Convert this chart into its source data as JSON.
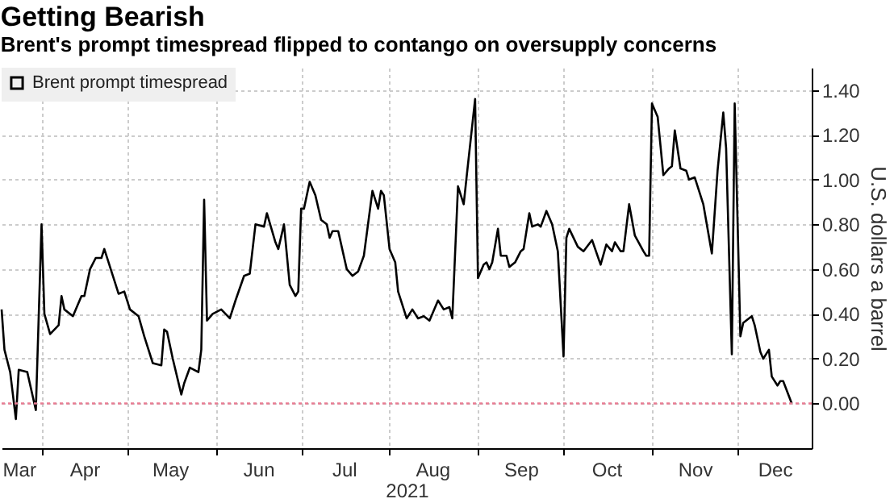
{
  "chart_data": {
    "type": "line",
    "title": "Getting Bearish",
    "subtitle": "Brent's prompt timespread flipped to contango on oversupply concerns",
    "xlabel": "2021",
    "ylabel": "U.S. dollars a barrel",
    "xlim": [
      "2021-03-18",
      "2021-12-27"
    ],
    "xticks": [
      {
        "value": "2021-03-24",
        "label": "Mar"
      },
      {
        "value": "2021-04-01",
        "label": null
      },
      {
        "value": "2021-04-16",
        "label": "Apr"
      },
      {
        "value": "2021-05-01",
        "label": null
      },
      {
        "value": "2021-05-16",
        "label": "May"
      },
      {
        "value": "2021-06-01",
        "label": null
      },
      {
        "value": "2021-06-16",
        "label": "Jun"
      },
      {
        "value": "2021-07-01",
        "label": null
      },
      {
        "value": "2021-07-16",
        "label": "Jul"
      },
      {
        "value": "2021-08-01",
        "label": null
      },
      {
        "value": "2021-08-16",
        "label": "Aug"
      },
      {
        "value": "2021-09-01",
        "label": null
      },
      {
        "value": "2021-09-16",
        "label": "Sep"
      },
      {
        "value": "2021-10-01",
        "label": null
      },
      {
        "value": "2021-10-16",
        "label": "Oct"
      },
      {
        "value": "2021-11-01",
        "label": null
      },
      {
        "value": "2021-11-16",
        "label": "Nov"
      },
      {
        "value": "2021-12-01",
        "label": null
      },
      {
        "value": "2021-12-14",
        "label": "Dec"
      }
    ],
    "ylim": [
      -0.2,
      1.5
    ],
    "yticks": [
      {
        "value": 0,
        "label": "0.00"
      },
      {
        "value": 0.2,
        "label": "0.20"
      },
      {
        "value": 0.4,
        "label": "0.40"
      },
      {
        "value": 0.6,
        "label": "0.60"
      },
      {
        "value": 0.8,
        "label": "0.80"
      },
      {
        "value": 1,
        "label": "1.00"
      },
      {
        "value": 1.2,
        "label": "1.20"
      },
      {
        "value": 1.4,
        "label": "1.40"
      }
    ],
    "grid": true,
    "legend": "top left",
    "ref_lines": [
      {
        "axis": "y",
        "value": 0,
        "color": "#e87c93",
        "line_style": "dotted"
      }
    ],
    "x": [
      "2021-03-18",
      "2021-03-19",
      "2021-03-21",
      "2021-03-23",
      "2021-03-24",
      "2021-03-27",
      "2021-03-30",
      "2021-04-01",
      "2021-04-02",
      "2021-04-04",
      "2021-04-07",
      "2021-04-08",
      "2021-04-09",
      "2021-04-12",
      "2021-04-15",
      "2021-04-16",
      "2021-04-18",
      "2021-04-20",
      "2021-04-22",
      "2021-04-23",
      "2021-04-26",
      "2021-04-28",
      "2021-04-30",
      "2021-05-02",
      "2021-05-05",
      "2021-05-07",
      "2021-05-10",
      "2021-05-13",
      "2021-05-14",
      "2021-05-15",
      "2021-05-17",
      "2021-05-20",
      "2021-05-21",
      "2021-05-23",
      "2021-05-26",
      "2021-05-27",
      "2021-05-28",
      "2021-05-29",
      "2021-05-31",
      "2021-06-03",
      "2021-06-06",
      "2021-06-08",
      "2021-06-11",
      "2021-06-13",
      "2021-06-15",
      "2021-06-18",
      "2021-06-19",
      "2021-06-22",
      "2021-06-23",
      "2021-06-25",
      "2021-06-27",
      "2021-06-29",
      "2021-06-30",
      "2021-07-01",
      "2021-07-02",
      "2021-07-04",
      "2021-07-06",
      "2021-07-08",
      "2021-07-10",
      "2021-07-11",
      "2021-07-12",
      "2021-07-14",
      "2021-07-17",
      "2021-07-19",
      "2021-07-21",
      "2021-07-23",
      "2021-07-26",
      "2021-07-28",
      "2021-07-29",
      "2021-07-30",
      "2021-08-01",
      "2021-08-03",
      "2021-08-04",
      "2021-08-07",
      "2021-08-09",
      "2021-08-11",
      "2021-08-13",
      "2021-08-15",
      "2021-08-18",
      "2021-08-20",
      "2021-08-22",
      "2021-08-23",
      "2021-08-25",
      "2021-08-27",
      "2021-08-28",
      "2021-08-31",
      "2021-09-01",
      "2021-09-03",
      "2021-09-04",
      "2021-09-05",
      "2021-09-06",
      "2021-09-08",
      "2021-09-09",
      "2021-09-11",
      "2021-09-12",
      "2021-09-14",
      "2021-09-16",
      "2021-09-17",
      "2021-09-19",
      "2021-09-20",
      "2021-09-22",
      "2021-09-23",
      "2021-09-25",
      "2021-09-27",
      "2021-09-29",
      "2021-10-01",
      "2021-10-02",
      "2021-10-03",
      "2021-10-06",
      "2021-10-08",
      "2021-10-11",
      "2021-10-14",
      "2021-10-16",
      "2021-10-18",
      "2021-10-19",
      "2021-10-21",
      "2021-10-22",
      "2021-10-24",
      "2021-10-26",
      "2021-10-29",
      "2021-10-30",
      "2021-10-31",
      "2021-11-01",
      "2021-11-03",
      "2021-11-05",
      "2021-11-07",
      "2021-11-08",
      "2021-11-09",
      "2021-11-11",
      "2021-11-13",
      "2021-11-14",
      "2021-11-16",
      "2021-11-19",
      "2021-11-22",
      "2021-11-24",
      "2021-11-26",
      "2021-11-27",
      "2021-11-29",
      "2021-11-30",
      "2021-12-02",
      "2021-12-03",
      "2021-12-06",
      "2021-12-07",
      "2021-12-09",
      "2021-12-10",
      "2021-12-12",
      "2021-12-13",
      "2021-12-15",
      "2021-12-16",
      "2021-12-17",
      "2021-12-20"
    ],
    "series": [
      {
        "name": "Brent prompt timespread",
        "color": "#000000",
        "values": [
          0.42,
          0.24,
          0.14,
          -0.07,
          0.15,
          0.14,
          -0.03,
          0.8,
          0.4,
          0.31,
          0.35,
          0.48,
          0.42,
          0.39,
          0.48,
          0.48,
          0.6,
          0.65,
          0.65,
          0.69,
          0.57,
          0.49,
          0.5,
          0.42,
          0.39,
          0.3,
          0.18,
          0.17,
          0.33,
          0.32,
          0.2,
          0.04,
          0.09,
          0.16,
          0.14,
          0.24,
          0.91,
          0.37,
          0.4,
          0.42,
          0.38,
          0.46,
          0.57,
          0.58,
          0.8,
          0.79,
          0.85,
          0.72,
          0.69,
          0.8,
          0.53,
          0.48,
          0.5,
          0.87,
          0.87,
          0.99,
          0.93,
          0.82,
          0.8,
          0.74,
          0.77,
          0.77,
          0.6,
          0.57,
          0.59,
          0.66,
          0.95,
          0.87,
          0.95,
          0.93,
          0.69,
          0.63,
          0.5,
          0.38,
          0.42,
          0.38,
          0.39,
          0.37,
          0.46,
          0.42,
          0.43,
          0.38,
          0.97,
          0.89,
          1.01,
          1.36,
          0.56,
          0.62,
          0.63,
          0.6,
          0.63,
          0.78,
          0.66,
          0.66,
          0.61,
          0.63,
          0.68,
          0.69,
          0.85,
          0.79,
          0.8,
          0.79,
          0.86,
          0.8,
          0.68,
          0.21,
          0.74,
          0.78,
          0.7,
          0.68,
          0.73,
          0.62,
          0.71,
          0.68,
          0.72,
          0.68,
          0.68,
          0.89,
          0.75,
          0.68,
          0.66,
          0.66,
          1.34,
          1.28,
          1.02,
          1.05,
          1.06,
          1.22,
          1.05,
          1.04,
          1.0,
          1.01,
          0.89,
          0.67,
          1.04,
          1.3,
          1.14,
          0.22,
          1.34,
          0.3,
          0.36,
          0.39,
          0.35,
          0.23,
          0.2,
          0.24,
          0.12,
          0.08,
          0.1,
          0.1,
          0.0
        ]
      }
    ]
  }
}
